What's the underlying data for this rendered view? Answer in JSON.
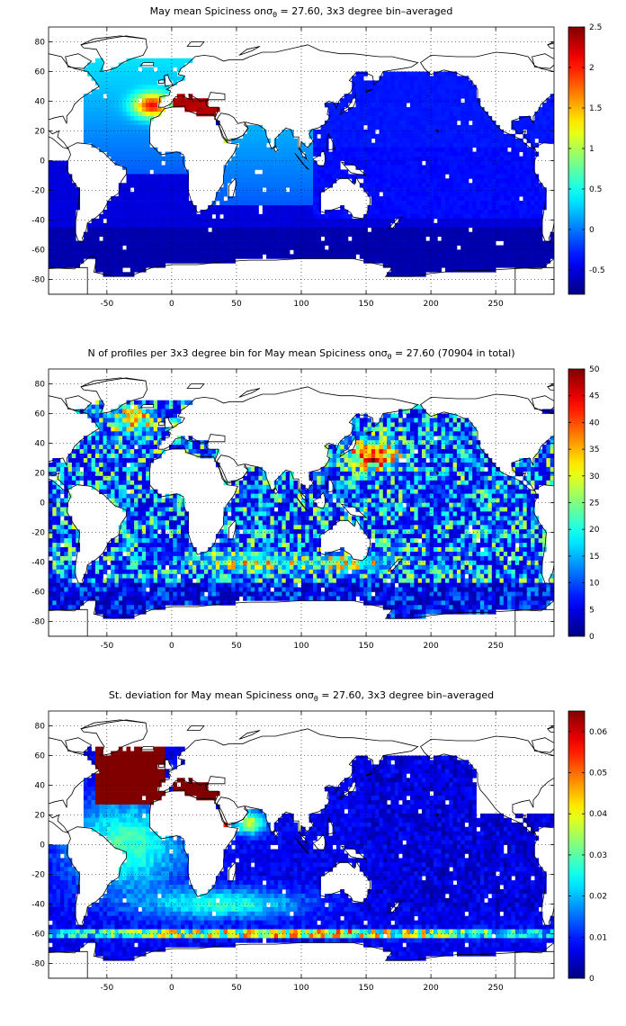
{
  "panels": [
    {
      "title_prefix": "May mean Spiciness on",
      "title_symbol": "σ",
      "title_sub": "θ",
      "title_suffix": " = 27.60, 3x3 degree bin–averaged",
      "colorbar": {
        "min": -0.8,
        "max": 2.5,
        "ticks": [
          "-0.5",
          "0",
          "0.5",
          "1",
          "1.5",
          "2",
          "2.5"
        ],
        "tick_values": [
          -0.5,
          0,
          0.5,
          1,
          1.5,
          2,
          2.5
        ]
      },
      "pattern": "spice"
    },
    {
      "title_prefix": "N of profiles per 3x3 degree bin for May mean Spiciness on",
      "title_symbol": "σ",
      "title_sub": "θ",
      "title_suffix": " = 27.60 (70904 in total)",
      "colorbar": {
        "min": 0,
        "max": 50,
        "ticks": [
          "0",
          "5",
          "10",
          "15",
          "20",
          "25",
          "30",
          "35",
          "40",
          "45",
          "50"
        ],
        "tick_values": [
          0,
          5,
          10,
          15,
          20,
          25,
          30,
          35,
          40,
          45,
          50
        ]
      },
      "pattern": "count"
    },
    {
      "title_prefix": "St. deviation for May mean Spiciness on",
      "title_symbol": "σ",
      "title_sub": "θ",
      "title_suffix": " = 27.60, 3x3 degree bin–averaged",
      "colorbar": {
        "min": 0,
        "max": 0.065,
        "ticks": [
          "0",
          "0.01",
          "0.02",
          "0.03",
          "0.04",
          "0.05",
          "0.06"
        ],
        "tick_values": [
          0,
          0.01,
          0.02,
          0.03,
          0.04,
          0.05,
          0.06
        ]
      },
      "pattern": "std"
    }
  ],
  "axes": {
    "lon_range": [
      -95,
      295
    ],
    "lat_range": [
      -90,
      90
    ],
    "x_ticks": [
      "-50",
      "0",
      "50",
      "100",
      "150",
      "200",
      "250"
    ],
    "x_tick_values": [
      -50,
      0,
      50,
      100,
      150,
      200,
      250
    ],
    "y_ticks": [
      "80",
      "60",
      "40",
      "20",
      "0",
      "-20",
      "-40",
      "-60",
      "-80"
    ],
    "y_tick_values": [
      80,
      60,
      40,
      20,
      0,
      -20,
      -40,
      -60,
      -80
    ],
    "grid": "dotted"
  },
  "colormap": "jet"
}
